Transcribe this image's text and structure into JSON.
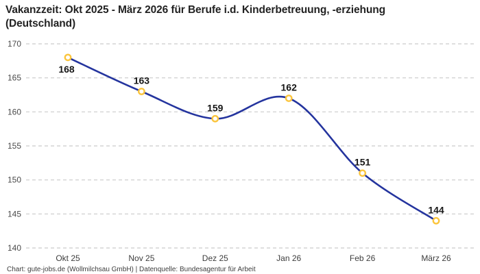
{
  "title": "Vakanzzeit: Okt 2025 - März 2026 für Berufe i.d. Kinderbetreuung, -erziehung (Deutschland)",
  "footer": "Chart: gute-jobs.de (Wollmilchsau GmbH) | Datenquelle: Bundesagentur für Arbeit",
  "colors": {
    "background": "#ffffff",
    "line": "#24349e",
    "marker_ring": "#fbc53d",
    "marker_fill": "#ffffff",
    "grid": "#c9c9c9",
    "title_text": "#222222",
    "value_label": "#161616",
    "tick_label": "#4a4a4a",
    "footer_text": "#3d3d3d"
  },
  "chart_data": {
    "type": "line",
    "categories": [
      "Okt 25",
      "Nov 25",
      "Dez 25",
      "Jan 26",
      "Feb 26",
      "März 26"
    ],
    "values": [
      168,
      163,
      159,
      162,
      151,
      144
    ],
    "title": "Vakanzzeit: Okt 2025 - März 2026 für Berufe i.d. Kinderbetreuung, -erziehung (Deutschland)",
    "xlabel": "",
    "ylabel": "",
    "ylim": [
      140,
      170
    ],
    "yticks": [
      140,
      145,
      150,
      155,
      160,
      165,
      170
    ],
    "grid": "dashed-horizontal",
    "line_style": "smooth",
    "point_labels": true,
    "legend": "none"
  }
}
